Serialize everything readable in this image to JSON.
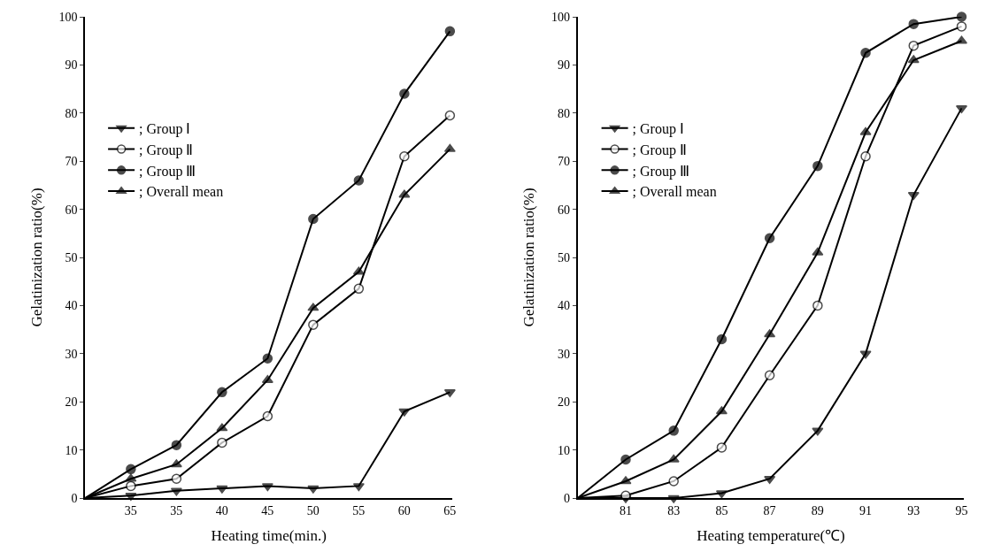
{
  "chart_data": [
    {
      "type": "line",
      "xlabel": "Heating time(min.)",
      "ylabel": "Gelatinization ratio(%)",
      "categories": [
        null,
        "35",
        "35",
        "40",
        "45",
        "50",
        "55",
        "60",
        "65"
      ],
      "ylim": [
        0,
        100
      ],
      "yticks": [
        0,
        10,
        20,
        30,
        40,
        50,
        60,
        70,
        80,
        90,
        100
      ],
      "legend": "top left",
      "line_style": "solid",
      "series": [
        {
          "name": "; Group Ⅰ",
          "color": "#000000",
          "marker": "triangle",
          "values": [
            0,
            0.5,
            1.5,
            2,
            2.5,
            2,
            2.5,
            18,
            22
          ]
        },
        {
          "name": "; Group Ⅱ",
          "color": "#000000",
          "marker": "circle",
          "values": [
            0,
            2.5,
            4,
            11.5,
            17,
            36,
            43.5,
            71,
            79.5
          ]
        },
        {
          "name": "; Group Ⅲ",
          "color": "#000000",
          "marker": "circle",
          "values": [
            0,
            6,
            11,
            22,
            29,
            58,
            66,
            84,
            97
          ]
        },
        {
          "name": "; Overall mean",
          "color": "#000000",
          "marker": "triangle",
          "values": [
            0,
            4,
            7,
            14.5,
            24.5,
            39.5,
            47,
            63,
            72.5
          ]
        }
      ]
    },
    {
      "type": "line",
      "xlabel": "Heating temperature(℃)",
      "ylabel": "Gelatinization ratio(%)",
      "categories": [
        null,
        "81",
        "83",
        "85",
        "87",
        "89",
        "91",
        "93",
        "95"
      ],
      "ylim": [
        0,
        100
      ],
      "yticks": [
        0,
        10,
        20,
        30,
        40,
        50,
        60,
        70,
        80,
        90,
        100
      ],
      "legend": "top left",
      "line_style": "solid",
      "series": [
        {
          "name": "; Group Ⅰ",
          "color": "#000000",
          "marker": "triangle",
          "values": [
            0,
            0,
            0,
            1,
            4,
            14,
            30,
            63,
            81
          ]
        },
        {
          "name": "; Group Ⅱ",
          "color": "#000000",
          "marker": "circle",
          "values": [
            0,
            0.5,
            3.5,
            10.5,
            25.5,
            40,
            71,
            94,
            98
          ]
        },
        {
          "name": "; Group Ⅲ",
          "color": "#000000",
          "marker": "circle",
          "values": [
            0,
            8,
            14,
            33,
            54,
            69,
            92.5,
            98.5,
            100
          ]
        },
        {
          "name": "; Overall mean",
          "color": "#000000",
          "marker": "triangle",
          "values": [
            0,
            3.5,
            8,
            18,
            34,
            51,
            76,
            91,
            95
          ]
        }
      ]
    }
  ]
}
